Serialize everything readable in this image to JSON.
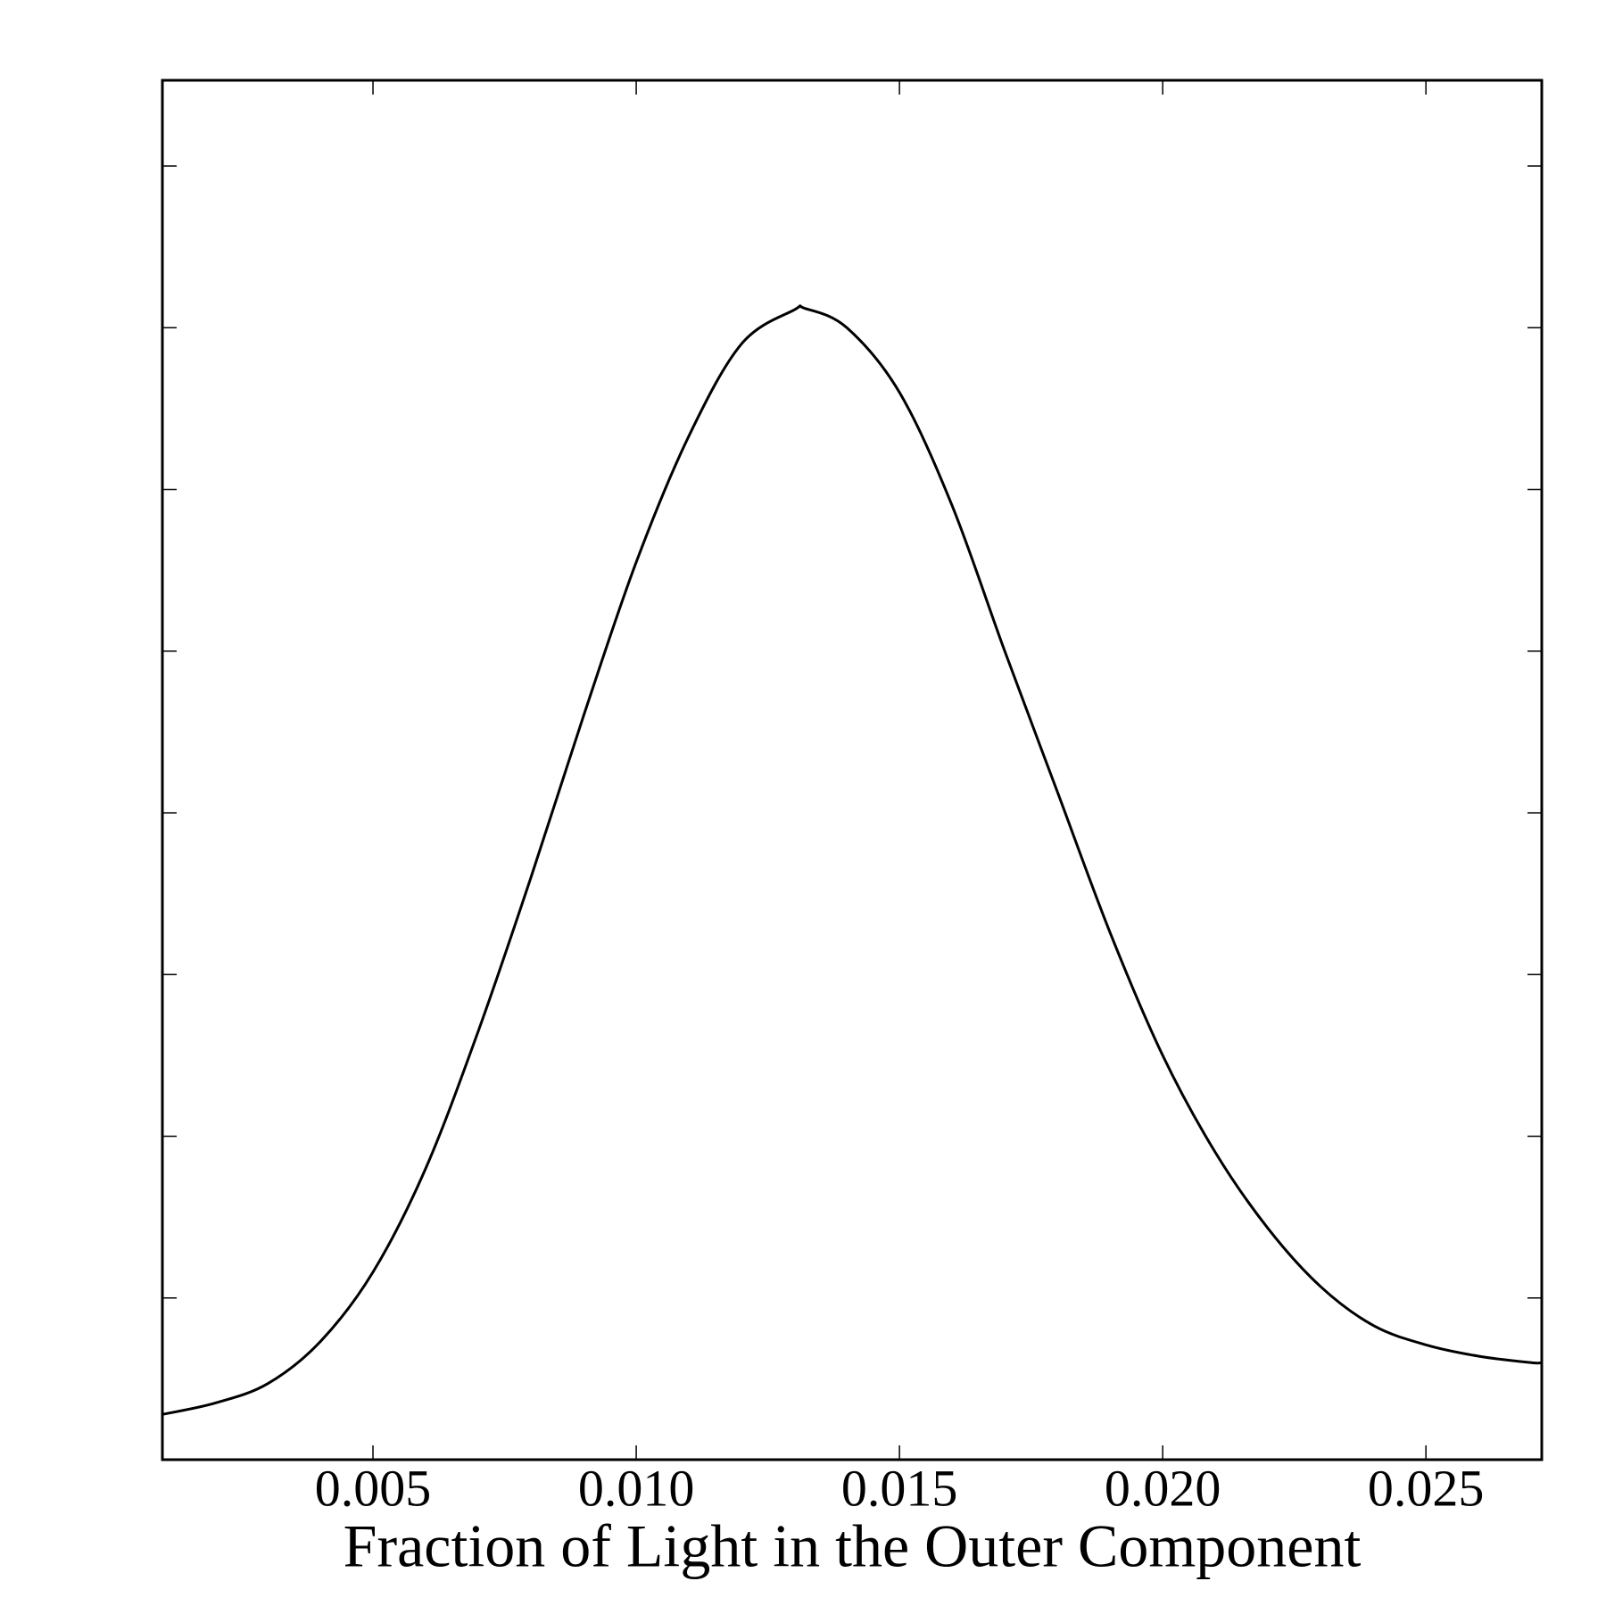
{
  "chart_data": {
    "type": "line",
    "xlabel": "Fraction of Light in the Outer Component",
    "x": [
      0.001,
      0.002,
      0.003,
      0.004,
      0.005,
      0.006,
      0.007,
      0.008,
      0.009,
      0.01,
      0.011,
      0.012,
      0.013,
      0.0132,
      0.014,
      0.015,
      0.016,
      0.017,
      0.018,
      0.019,
      0.02,
      0.021,
      0.022,
      0.023,
      0.024,
      0.025,
      0.026,
      0.027,
      0.0272
    ],
    "series": [
      {
        "color": "#000000",
        "values": [
          0.28,
          0.35,
          0.47,
          0.73,
          1.16,
          1.8,
          2.65,
          3.6,
          4.6,
          5.55,
          6.33,
          6.9,
          7.11,
          7.12,
          7.0,
          6.6,
          5.9,
          5.0,
          4.13,
          3.26,
          2.5,
          1.9,
          1.43,
          1.07,
          0.83,
          0.71,
          0.64,
          0.6,
          0.6
        ]
      }
    ],
    "xlim": [
      0.001,
      0.0272
    ],
    "xticks": [
      {
        "value": 0.005,
        "label": "0.005"
      },
      {
        "value": 0.01,
        "label": "0.010"
      },
      {
        "value": 0.015,
        "label": "0.015"
      },
      {
        "value": 0.02,
        "label": "0.020"
      },
      {
        "value": 0.025,
        "label": "0.025"
      }
    ],
    "ylim": [
      0,
      8.53
    ],
    "yticks": [
      1,
      2,
      3,
      4,
      5,
      6,
      7,
      8
    ]
  }
}
